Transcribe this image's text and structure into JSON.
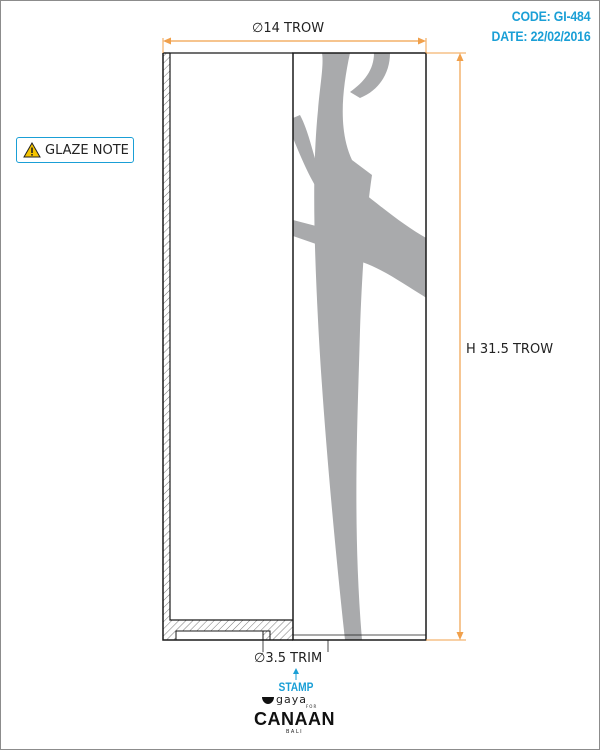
{
  "header": {
    "code": "CODE: GI-484",
    "date": "DATE: 22/02/2016"
  },
  "glaze_note": {
    "label": "GLAZE NOTE",
    "icon": "warning-icon"
  },
  "dimensions": {
    "diameter": "∅14 TROW",
    "height": "H 31.5 TROW",
    "base": "∅3.5 TRIM"
  },
  "stamp": {
    "label": "STAMP"
  },
  "logo": {
    "gaya": "gaya",
    "for": "FOR",
    "canaan": "CANAAN",
    "bali": "BALI"
  },
  "colors": {
    "accent": "#1a9fd6",
    "dimension_line": "#f0a04b",
    "decoration": "#a9aaac",
    "line": "#1a1a1a"
  }
}
